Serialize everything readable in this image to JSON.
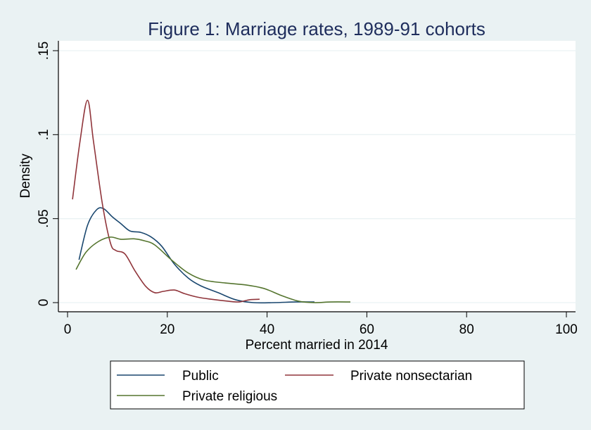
{
  "chart_data": {
    "type": "line",
    "title": "Figure 1: Marriage rates, 1989-91 cohorts",
    "xlabel": "Percent married in 2014",
    "ylabel": "Density",
    "xlim": [
      0,
      100
    ],
    "ylim": [
      0,
      0.15
    ],
    "x_ticks": [
      0,
      20,
      40,
      60,
      80,
      100
    ],
    "x_tick_labels": [
      "0",
      "20",
      "40",
      "60",
      "80",
      "100"
    ],
    "y_ticks": [
      0,
      0.05,
      0.1,
      0.15
    ],
    "y_tick_labels": [
      "0",
      ".05",
      ".1",
      ".15"
    ],
    "grid": "horizontal",
    "legend_position": "bottom",
    "background_color": "#eaf2f3",
    "plot_background_color": "#ffffff",
    "series": [
      {
        "name": "Public",
        "color": "#1a476f",
        "x": [
          2.3,
          4,
          5.8,
          7.2,
          9,
          10.7,
          12.5,
          14.7,
          16.8,
          18.9,
          21.4,
          24.2,
          26.7,
          30.2,
          33.7,
          37.2,
          41.5,
          45.7,
          49.5
        ],
        "y": [
          0.0255,
          0.046,
          0.0552,
          0.056,
          0.051,
          0.047,
          0.0427,
          0.0418,
          0.039,
          0.0335,
          0.023,
          0.0146,
          0.01,
          0.0059,
          0.0017,
          0.0,
          0.0,
          0.0004,
          0.0004
        ]
      },
      {
        "name": "Private nonsectarian",
        "color": "#90353b",
        "x": [
          1,
          2.5,
          4,
          5.2,
          7,
          8.6,
          9.7,
          11.5,
          13.5,
          15.7,
          17.5,
          19.2,
          21.4,
          23.4,
          26,
          28.8,
          32.3,
          34.4,
          36.5,
          38.5
        ],
        "y": [
          0.0615,
          0.096,
          0.1205,
          0.096,
          0.0585,
          0.0355,
          0.031,
          0.029,
          0.019,
          0.0096,
          0.0059,
          0.0067,
          0.0075,
          0.0054,
          0.0033,
          0.002,
          0.0008,
          0.0004,
          0.0017,
          0.002
        ]
      },
      {
        "name": "Private religious",
        "color": "#55752f",
        "x": [
          1.7,
          3.7,
          6.2,
          8.6,
          10.7,
          13.3,
          15.4,
          17.5,
          21,
          24.2,
          27.4,
          31.6,
          35.8,
          39.4,
          42.9,
          46.4,
          49.5,
          52.8,
          56.7
        ],
        "y": [
          0.0197,
          0.03,
          0.0364,
          0.039,
          0.0377,
          0.038,
          0.0368,
          0.0343,
          0.025,
          0.0176,
          0.0134,
          0.0117,
          0.0105,
          0.0084,
          0.0042,
          0.0008,
          0.0,
          0.0004,
          0.0004
        ]
      }
    ]
  }
}
